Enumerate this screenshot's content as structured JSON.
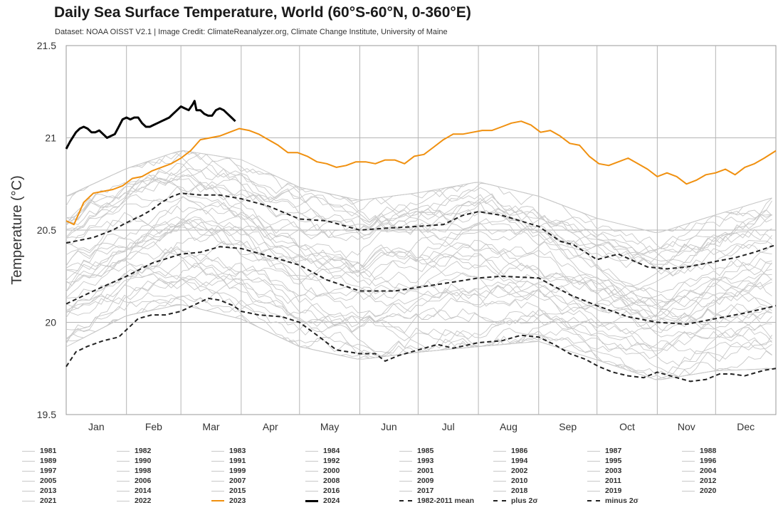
{
  "chart_data": {
    "type": "line",
    "title": "Daily Sea Surface Temperature, World (60°S-60°N, 0-360°E)",
    "subtitle": "Dataset: NOAA OISST V2.1 | Image Credit: ClimateReanalyzer.org, Climate Change Institute, University of Maine",
    "ylabel": "Temperature (°C)",
    "xlabel": "",
    "ylim": [
      19.5,
      21.5
    ],
    "yticks": [
      "19.5",
      "20",
      "20.5",
      "21",
      "21.5"
    ],
    "xlim": [
      1,
      366
    ],
    "months": [
      "Jan",
      "Feb",
      "Mar",
      "Apr",
      "May",
      "Jun",
      "Jul",
      "Aug",
      "Sep",
      "Oct",
      "Nov",
      "Dec"
    ],
    "grid": true,
    "legend_position": "bottom",
    "x_unit": "day of year",
    "colors": {
      "historical": "#c8c8c8",
      "2023": "#f0900f",
      "2024": "#000000",
      "mean": "#222222",
      "sigma": "#222222",
      "grid": "#b4b4b4",
      "axis": "#999999"
    },
    "historical_years": [
      "1981",
      "1982",
      "1983",
      "1984",
      "1985",
      "1986",
      "1987",
      "1988",
      "1989",
      "1990",
      "1991",
      "1992",
      "1993",
      "1994",
      "1995",
      "1996",
      "1997",
      "1998",
      "1999",
      "2000",
      "2001",
      "2002",
      "2003",
      "2004",
      "2005",
      "2006",
      "2007",
      "2008",
      "2009",
      "2010",
      "2011",
      "2012",
      "2013",
      "2014",
      "2015",
      "2016",
      "2017",
      "2018",
      "2019",
      "2020",
      "2021",
      "2022"
    ],
    "historical_envelope": {
      "x": [
        1,
        32,
        60,
        91,
        121,
        152,
        182,
        213,
        244,
        274,
        305,
        335,
        366
      ],
      "low": [
        19.85,
        20.02,
        20.08,
        20.0,
        19.85,
        19.78,
        19.82,
        19.85,
        19.88,
        19.78,
        19.67,
        19.72,
        19.73
      ],
      "high": [
        20.7,
        20.85,
        20.95,
        20.9,
        20.75,
        20.68,
        20.72,
        20.78,
        20.7,
        20.58,
        20.5,
        20.6,
        20.7
      ]
    },
    "series": [
      {
        "name": "2023",
        "style": "solid",
        "x": [
          1,
          5,
          10,
          15,
          20,
          25,
          30,
          35,
          40,
          45,
          50,
          55,
          60,
          65,
          70,
          75,
          80,
          85,
          90,
          95,
          100,
          105,
          110,
          115,
          120,
          125,
          130,
          135,
          140,
          145,
          150,
          155,
          160,
          165,
          170,
          175,
          180,
          185,
          190,
          195,
          200,
          205,
          210,
          215,
          220,
          225,
          230,
          235,
          240,
          245,
          250,
          255,
          260,
          265,
          270,
          275,
          280,
          285,
          290,
          295,
          300,
          305,
          310,
          315,
          320,
          325,
          330,
          335,
          340,
          345,
          350,
          355,
          360,
          366
        ],
        "y": [
          20.55,
          20.53,
          20.65,
          20.7,
          20.71,
          20.72,
          20.74,
          20.78,
          20.79,
          20.82,
          20.84,
          20.86,
          20.89,
          20.93,
          20.99,
          21.0,
          21.01,
          21.03,
          21.05,
          21.04,
          21.02,
          20.99,
          20.96,
          20.92,
          20.92,
          20.9,
          20.87,
          20.86,
          20.84,
          20.85,
          20.87,
          20.87,
          20.86,
          20.88,
          20.88,
          20.86,
          20.9,
          20.91,
          20.95,
          20.99,
          21.02,
          21.02,
          21.03,
          21.04,
          21.04,
          21.06,
          21.08,
          21.09,
          21.07,
          21.03,
          21.04,
          21.01,
          20.97,
          20.96,
          20.9,
          20.86,
          20.85,
          20.87,
          20.89,
          20.86,
          20.83,
          20.79,
          20.81,
          20.79,
          20.75,
          20.77,
          20.8,
          20.81,
          20.83,
          20.8,
          20.84,
          20.86,
          20.89,
          20.93
        ]
      },
      {
        "name": "2024",
        "style": "solid",
        "x": [
          1,
          3,
          6,
          8,
          10,
          12,
          14,
          16,
          18,
          20,
          22,
          24,
          26,
          28,
          30,
          32,
          34,
          36,
          38,
          40,
          42,
          44,
          46,
          48,
          50,
          52,
          54,
          56,
          58,
          60,
          62,
          64,
          66,
          67,
          68,
          70,
          72,
          74,
          76,
          78,
          80,
          82,
          84,
          86,
          88
        ],
        "y": [
          20.94,
          20.98,
          21.03,
          21.05,
          21.06,
          21.05,
          21.03,
          21.03,
          21.04,
          21.02,
          21.0,
          21.01,
          21.02,
          21.06,
          21.1,
          21.11,
          21.1,
          21.11,
          21.11,
          21.08,
          21.06,
          21.06,
          21.07,
          21.08,
          21.09,
          21.1,
          21.11,
          21.13,
          21.15,
          21.17,
          21.16,
          21.15,
          21.18,
          21.2,
          21.15,
          21.15,
          21.13,
          21.12,
          21.12,
          21.15,
          21.16,
          21.15,
          21.13,
          21.11,
          21.09
        ]
      },
      {
        "name": "1982-2011 mean",
        "style": "dashed",
        "x": [
          1,
          15,
          32,
          45,
          60,
          70,
          80,
          91,
          105,
          121,
          135,
          152,
          170,
          182,
          195,
          213,
          225,
          244,
          260,
          274,
          290,
          305,
          320,
          335,
          350,
          366
        ],
        "y": [
          20.1,
          20.17,
          20.25,
          20.32,
          20.37,
          20.38,
          20.41,
          20.4,
          20.36,
          20.31,
          20.23,
          20.17,
          20.17,
          20.19,
          20.21,
          20.24,
          20.25,
          20.24,
          20.15,
          20.09,
          20.03,
          20.0,
          19.99,
          20.02,
          20.05,
          20.09
        ]
      },
      {
        "name": "plus 2σ",
        "style": "dashed",
        "x": [
          1,
          15,
          25,
          32,
          40,
          45,
          50,
          55,
          60,
          70,
          80,
          91,
          105,
          121,
          135,
          152,
          165,
          182,
          195,
          205,
          213,
          225,
          244,
          255,
          262,
          274,
          285,
          300,
          310,
          320,
          335,
          345,
          355,
          366
        ],
        "y": [
          20.43,
          20.46,
          20.5,
          20.54,
          20.58,
          20.61,
          20.65,
          20.68,
          20.7,
          20.69,
          20.69,
          20.67,
          20.63,
          20.56,
          20.55,
          20.5,
          20.51,
          20.52,
          20.53,
          20.58,
          20.6,
          20.58,
          20.52,
          20.44,
          20.42,
          20.34,
          20.37,
          20.3,
          20.29,
          20.3,
          20.33,
          20.35,
          20.38,
          20.42
        ]
      },
      {
        "name": "minus 2σ",
        "style": "dashed",
        "x": [
          1,
          6,
          12,
          20,
          28,
          32,
          38,
          45,
          52,
          60,
          68,
          74,
          80,
          87,
          91,
          100,
          112,
          121,
          130,
          140,
          152,
          160,
          165,
          172,
          182,
          192,
          200,
          213,
          225,
          235,
          244,
          252,
          260,
          268,
          275,
          282,
          290,
          298,
          305,
          315,
          322,
          330,
          337,
          343,
          350,
          360,
          366
        ],
        "y": [
          19.76,
          19.84,
          19.87,
          19.9,
          19.92,
          19.96,
          20.02,
          20.04,
          20.04,
          20.06,
          20.1,
          20.13,
          20.12,
          20.09,
          20.06,
          20.04,
          20.03,
          20.0,
          19.93,
          19.85,
          19.83,
          19.83,
          19.79,
          19.82,
          19.85,
          19.88,
          19.86,
          19.89,
          19.9,
          19.93,
          19.92,
          19.88,
          19.83,
          19.8,
          19.76,
          19.73,
          19.71,
          19.7,
          19.73,
          19.7,
          19.68,
          19.69,
          19.72,
          19.72,
          19.71,
          19.74,
          19.75
        ]
      }
    ]
  }
}
